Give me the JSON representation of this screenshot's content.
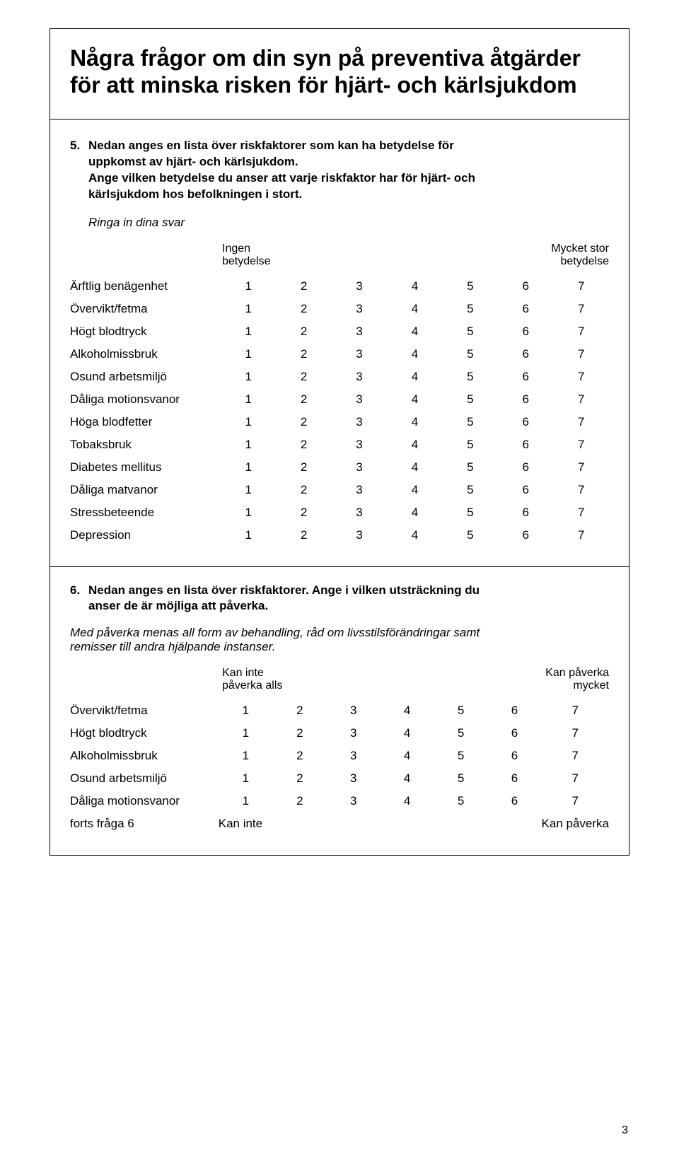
{
  "title": "Några frågor om din syn på preventiva åtgärder för att minska risken för hjärt- och kärlsjukdom",
  "q5": {
    "number": "5.",
    "line1": "Nedan anges en lista över riskfaktorer som kan ha betydelse för",
    "line2": "uppkomst av hjärt- och kärlsjukdom.",
    "line3": "Ange vilken betydelse du anser att varje riskfaktor har för hjärt- och",
    "line4": "kärlsjukdom hos befolkningen i stort.",
    "instruction": "Ringa in dina svar",
    "left_label_l1": "Ingen",
    "left_label_l2": "betydelse",
    "right_label_l1": "Mycket stor",
    "right_label_l2": "betydelse",
    "scale": [
      "1",
      "2",
      "3",
      "4",
      "5",
      "6",
      "7"
    ],
    "rows": [
      "Ärftlig benägenhet",
      "Övervikt/fetma",
      "Högt blodtryck",
      "Alkoholmissbruk",
      "Osund arbetsmiljö",
      "Dåliga motionsvanor",
      "Höga blodfetter",
      "Tobaksbruk",
      "Diabetes mellitus",
      "Dåliga matvanor",
      "Stressbeteende",
      "Depression"
    ]
  },
  "q6": {
    "number": "6.",
    "line1": "Nedan anges en lista över riskfaktorer. Ange i vilken utsträckning du",
    "line2": "anser de är möjliga att påverka.",
    "para_l1": "Med påverka menas all form av behandling, råd om livsstilsförändringar samt",
    "para_l2": "remisser till andra hjälpande instanser.",
    "left_label_l1": "Kan inte",
    "left_label_l2": "påverka  alls",
    "right_label_l1": "Kan påverka",
    "right_label_l2": "mycket",
    "scale": [
      "1",
      "2",
      "3",
      "4",
      "5",
      "6",
      "7"
    ],
    "rows": [
      "Övervikt/fetma",
      "Högt blodtryck",
      "Alkoholmissbruk",
      "Osund arbetsmiljö",
      "Dåliga motionsvanor"
    ],
    "cont_label": "forts fråga 6",
    "cont_left": "Kan inte",
    "cont_right": "Kan påverka"
  },
  "page_number": "3"
}
